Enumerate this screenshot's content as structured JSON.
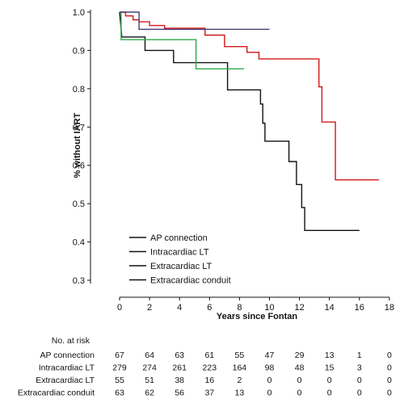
{
  "chart_data": {
    "type": "line",
    "title": "",
    "xlabel": "Years since Fontan",
    "ylabel": "% without IART",
    "xlim": [
      0,
      18
    ],
    "ylim": [
      0.3,
      1.0
    ],
    "x_ticks": [
      0,
      2,
      4,
      6,
      8,
      10,
      12,
      14,
      16,
      18
    ],
    "y_ticks": [
      0.3,
      0.4,
      0.5,
      0.6,
      0.7,
      0.8,
      0.9,
      1.0
    ],
    "y_tick_labels": [
      "0.3",
      "0.4",
      "0.5",
      "0.6",
      "0.7",
      "0.8",
      "0.9",
      "1.0"
    ],
    "grid": false,
    "legend_position": "bottom-left",
    "series": [
      {
        "name": "AP connection",
        "color": "#111111",
        "points": [
          [
            0,
            1.0
          ],
          [
            0.15,
            0.935
          ],
          [
            1.7,
            0.935
          ],
          [
            1.7,
            0.9
          ],
          [
            3.6,
            0.9
          ],
          [
            3.6,
            0.868
          ],
          [
            7.2,
            0.868
          ],
          [
            7.2,
            0.797
          ],
          [
            9.4,
            0.797
          ],
          [
            9.4,
            0.76
          ],
          [
            9.55,
            0.76
          ],
          [
            9.55,
            0.71
          ],
          [
            9.7,
            0.71
          ],
          [
            9.7,
            0.663
          ],
          [
            11.3,
            0.663
          ],
          [
            11.3,
            0.61
          ],
          [
            11.8,
            0.61
          ],
          [
            11.8,
            0.55
          ],
          [
            12.15,
            0.55
          ],
          [
            12.15,
            0.49
          ],
          [
            12.35,
            0.49
          ],
          [
            12.35,
            0.43
          ],
          [
            16.0,
            0.43
          ]
        ]
      },
      {
        "name": "Intracardiac LT",
        "color": "#d01818",
        "points": [
          [
            0,
            1.0
          ],
          [
            0.4,
            1.0
          ],
          [
            0.4,
            0.99
          ],
          [
            0.9,
            0.99
          ],
          [
            0.9,
            0.98
          ],
          [
            1.3,
            0.98
          ],
          [
            1.3,
            0.975
          ],
          [
            2.0,
            0.975
          ],
          [
            2.0,
            0.965
          ],
          [
            3.0,
            0.965
          ],
          [
            3.0,
            0.958
          ],
          [
            5.7,
            0.958
          ],
          [
            5.7,
            0.94
          ],
          [
            7.0,
            0.94
          ],
          [
            7.0,
            0.91
          ],
          [
            8.5,
            0.91
          ],
          [
            8.5,
            0.895
          ],
          [
            9.3,
            0.895
          ],
          [
            9.3,
            0.878
          ],
          [
            13.3,
            0.878
          ],
          [
            13.3,
            0.805
          ],
          [
            13.5,
            0.805
          ],
          [
            13.5,
            0.713
          ],
          [
            14.4,
            0.713
          ],
          [
            14.4,
            0.562
          ],
          [
            17.3,
            0.562
          ]
        ]
      },
      {
        "name": "Extracardiac LT",
        "color": "#2aa84a",
        "points": [
          [
            0,
            1.0
          ],
          [
            0.1,
            1.0
          ],
          [
            0.1,
            0.928
          ],
          [
            5.1,
            0.928
          ],
          [
            5.1,
            0.852
          ],
          [
            8.3,
            0.852
          ]
        ]
      },
      {
        "name": "Extracardiac conduit",
        "color": "#4a3f7a",
        "points": [
          [
            0,
            1.0
          ],
          [
            1.3,
            1.0
          ],
          [
            1.3,
            0.955
          ],
          [
            10.0,
            0.955
          ]
        ]
      }
    ],
    "legend": [
      {
        "label": "AP connection",
        "color": "#111111"
      },
      {
        "label": "Intracardiac LT",
        "color": "#111111"
      },
      {
        "label": "Extracardiac LT",
        "color": "#111111"
      },
      {
        "label": "Extracardiac conduit",
        "color": "#111111"
      }
    ],
    "risk_table": {
      "header": "No. at risk",
      "columns_x": [
        0,
        2,
        4,
        6,
        8,
        10,
        12,
        14,
        16,
        18
      ],
      "rows": [
        {
          "label": "AP connection",
          "values": [
            "67",
            "64",
            "63",
            "61",
            "55",
            "47",
            "29",
            "13",
            "1",
            "0"
          ]
        },
        {
          "label": "Intracardiac LT",
          "values": [
            "279",
            "274",
            "261",
            "223",
            "164",
            "98",
            "48",
            "15",
            "3",
            "0"
          ]
        },
        {
          "label": "Extracardiac LT",
          "values": [
            "55",
            "51",
            "38",
            "16",
            "2",
            "0",
            "0",
            "0",
            "0",
            "0"
          ]
        },
        {
          "label": "Extracardiac conduit",
          "values": [
            "63",
            "62",
            "56",
            "37",
            "13",
            "0",
            "0",
            "0",
            "0",
            "0"
          ]
        }
      ]
    }
  }
}
